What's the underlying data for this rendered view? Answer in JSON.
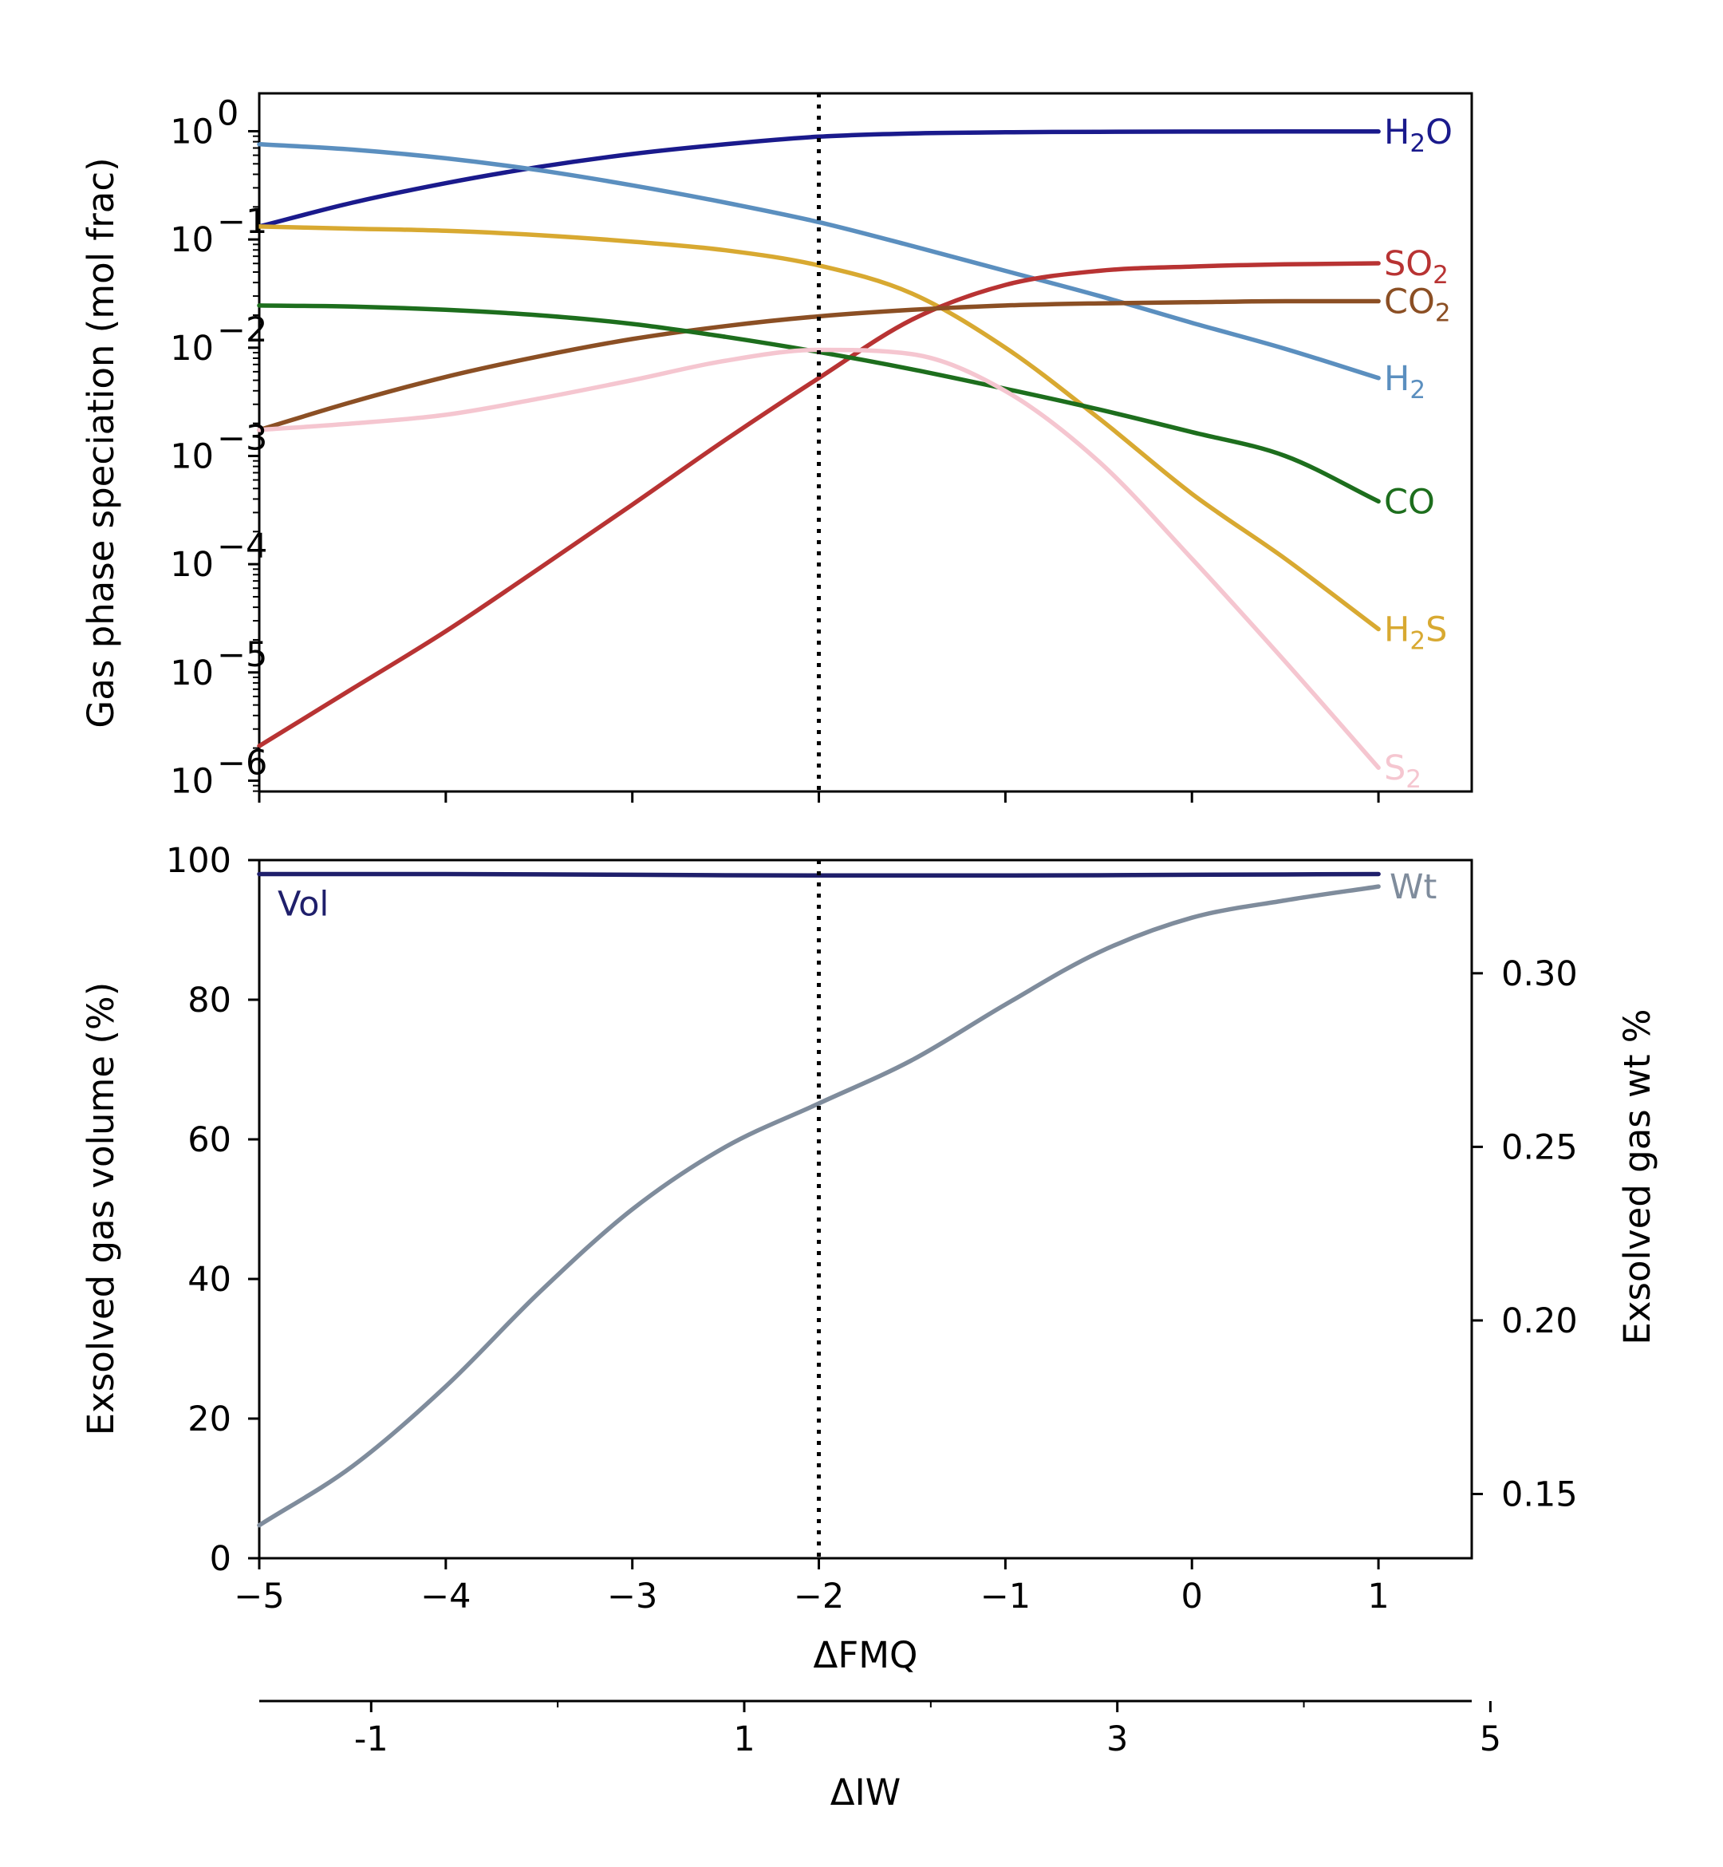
{
  "chart_data": [
    {
      "type": "line",
      "yscale": "log",
      "ylabel": "Gas phase speciation (mol frac)",
      "xlim": [
        -5,
        1.5
      ],
      "ylim": [
        -6.1,
        0.35
      ],
      "x_ticks": [
        -5,
        -4,
        -3,
        -2,
        -1,
        0,
        1
      ],
      "y_ticks": [
        {
          "value": 0,
          "base": "10",
          "exp": "0"
        },
        {
          "value": -1,
          "base": "10",
          "exp": "−1"
        },
        {
          "value": -2,
          "base": "10",
          "exp": "−2"
        },
        {
          "value": -3,
          "base": "10",
          "exp": "−3"
        },
        {
          "value": -4,
          "base": "10",
          "exp": "−4"
        },
        {
          "value": -5,
          "base": "10",
          "exp": "−5"
        },
        {
          "value": -6,
          "base": "10",
          "exp": "−6"
        }
      ],
      "vline_x": -2,
      "series": [
        {
          "name": "H2O",
          "label_base": "H",
          "label_sub": "2",
          "label_tail": "O",
          "color": "#1a1a8c",
          "x": [
            -5,
            -4.5,
            -4,
            -3.5,
            -3,
            -2.5,
            -2,
            -1.5,
            -1,
            -0.5,
            0,
            0.5,
            1
          ],
          "log_y": [
            -0.88,
            -0.66,
            -0.48,
            -0.33,
            -0.21,
            -0.12,
            -0.05,
            -0.02,
            -0.01,
            -0.005,
            -0.003,
            -0.002,
            -0.002
          ]
        },
        {
          "name": "H2",
          "label_base": "H",
          "label_sub": "2",
          "label_tail": "",
          "color": "#5b8fbf",
          "x": [
            -5,
            -4.5,
            -4,
            -3.5,
            -3,
            -2.5,
            -2,
            -1.5,
            -1,
            -0.5,
            0,
            0.5,
            1
          ],
          "log_y": [
            -0.12,
            -0.17,
            -0.25,
            -0.36,
            -0.5,
            -0.66,
            -0.84,
            -1.06,
            -1.29,
            -1.52,
            -1.77,
            -2.01,
            -2.28
          ]
        },
        {
          "name": "H2S",
          "label_base": "H",
          "label_sub": "2",
          "label_tail": "S",
          "color": "#d8a931",
          "x": [
            -5,
            -4.5,
            -4,
            -3.5,
            -3,
            -2.5,
            -2,
            -1.5,
            -1,
            -0.5,
            0,
            0.5,
            1
          ],
          "log_y": [
            -0.88,
            -0.9,
            -0.92,
            -0.96,
            -1.02,
            -1.1,
            -1.24,
            -1.5,
            -2.0,
            -2.65,
            -3.35,
            -3.95,
            -4.6
          ]
        },
        {
          "name": "SO2",
          "label_base": "SO",
          "label_sub": "2",
          "label_tail": "",
          "color": "#b83333",
          "x": [
            -5,
            -4.5,
            -4,
            -3.5,
            -3,
            -2.5,
            -2,
            -1.5,
            -1,
            -0.5,
            0,
            0.5,
            1
          ],
          "log_y": [
            -5.68,
            -5.15,
            -4.62,
            -4.04,
            -3.45,
            -2.85,
            -2.28,
            -1.74,
            -1.42,
            -1.29,
            -1.25,
            -1.23,
            -1.22
          ]
        },
        {
          "name": "CO2",
          "label_base": "CO",
          "label_sub": "2",
          "label_tail": "",
          "color": "#8b4f24",
          "x": [
            -5,
            -4.5,
            -4,
            -3.5,
            -3,
            -2.5,
            -2,
            -1.5,
            -1,
            -0.5,
            0,
            0.5,
            1
          ],
          "log_y": [
            -2.76,
            -2.5,
            -2.27,
            -2.08,
            -1.92,
            -1.8,
            -1.71,
            -1.65,
            -1.61,
            -1.59,
            -1.58,
            -1.57,
            -1.57
          ]
        },
        {
          "name": "CO",
          "label_base": "CO",
          "label_sub": "",
          "label_tail": "",
          "color": "#1d6e1d",
          "x": [
            -5,
            -4.5,
            -4,
            -3.5,
            -3,
            -2.5,
            -2,
            -1.5,
            -1,
            -0.5,
            0,
            0.5,
            1
          ],
          "log_y": [
            -1.61,
            -1.62,
            -1.65,
            -1.7,
            -1.78,
            -1.9,
            -2.04,
            -2.2,
            -2.38,
            -2.57,
            -2.78,
            -3.0,
            -3.42
          ]
        },
        {
          "name": "S2",
          "label_base": "S",
          "label_sub": "2",
          "label_tail": "",
          "color": "#f5c6d0",
          "x": [
            -5,
            -4.5,
            -4,
            -3.5,
            -3,
            -2.5,
            -2,
            -1.5,
            -1,
            -0.5,
            0,
            0.5,
            1
          ],
          "log_y": [
            -2.76,
            -2.7,
            -2.62,
            -2.47,
            -2.3,
            -2.12,
            -2.02,
            -2.06,
            -2.4,
            -3.05,
            -3.95,
            -4.9,
            -5.88
          ]
        }
      ]
    },
    {
      "type": "line",
      "ylabel": "Exsolved gas volume (%)",
      "ylabel_right": "Exsolved gas wt %",
      "xlabel": "ΔFMQ",
      "xlim": [
        -5,
        1.5
      ],
      "ylim": [
        0,
        100
      ],
      "ylim_right": [
        0.1315,
        0.3326
      ],
      "x_ticks": [
        -5,
        -4,
        -3,
        -2,
        -1,
        0,
        1
      ],
      "x_tick_labels": [
        "−5",
        "−4",
        "−3",
        "−2",
        "−1",
        "0",
        "1"
      ],
      "y_ticks": [
        0,
        20,
        40,
        60,
        80,
        100
      ],
      "y_tick_labels": [
        "0",
        "20",
        "40",
        "60",
        "80",
        "100"
      ],
      "y_right_ticks": [
        0.15,
        0.2,
        0.25,
        0.3
      ],
      "y_right_tick_labels": [
        "0.15",
        "0.20",
        "0.25",
        "0.30"
      ],
      "vline_x": -2,
      "series": [
        {
          "name": "Vol",
          "label": "Vol",
          "axis": "left",
          "color": "#1f1f6b",
          "x": [
            -5,
            -4,
            -3,
            -2,
            -1,
            0,
            1
          ],
          "y": [
            98.0,
            98.0,
            97.9,
            97.8,
            97.8,
            97.9,
            98.0
          ]
        },
        {
          "name": "Wt",
          "label": "Wt",
          "axis": "right",
          "color": "#7f8c9c",
          "x": [
            -5,
            -4.5,
            -4,
            -3.5,
            -3,
            -2.5,
            -2,
            -1.5,
            -1,
            -0.5,
            0,
            0.5,
            1
          ],
          "y": [
            0.141,
            0.158,
            0.181,
            0.208,
            0.232,
            0.25,
            0.2625,
            0.275,
            0.291,
            0.306,
            0.316,
            0.321,
            0.325
          ]
        }
      ]
    },
    {
      "type": "axis",
      "xlabel": "ΔIW",
      "ticks": [
        -1,
        1,
        3,
        5
      ],
      "tick_labels": [
        "-1",
        "1",
        "3",
        "5"
      ],
      "minor_ticks": [
        0,
        2,
        4
      ],
      "fmq_offset": 3.4
    }
  ]
}
